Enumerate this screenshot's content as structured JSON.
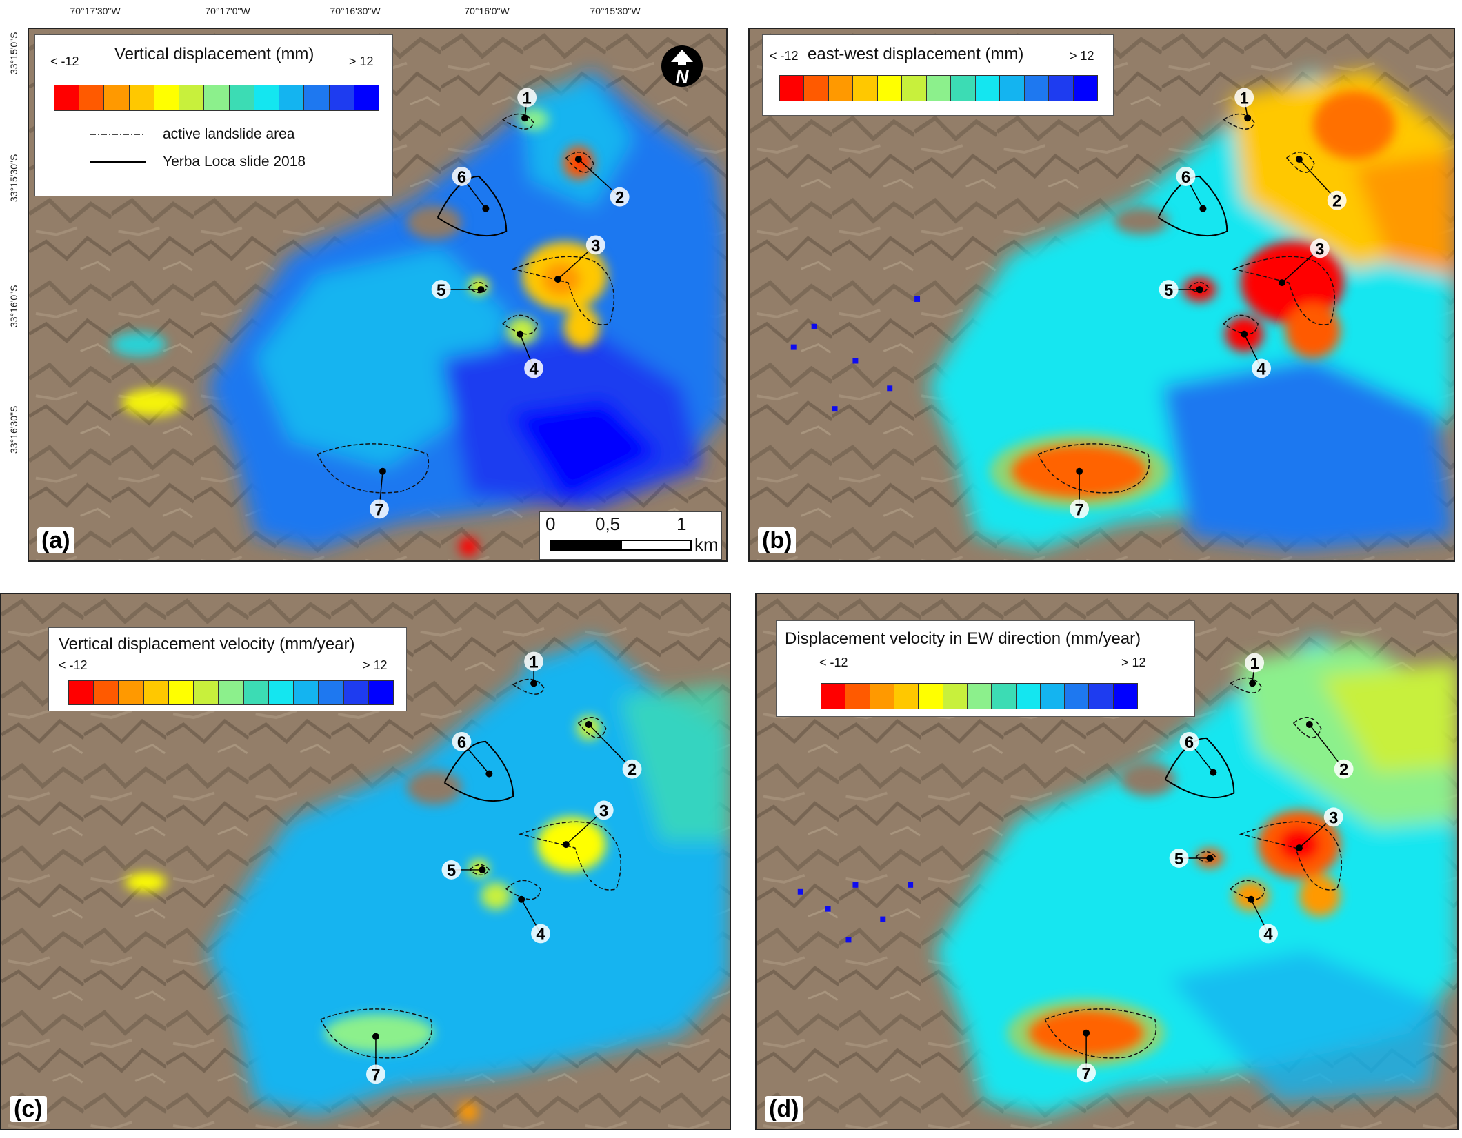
{
  "coordinates": {
    "longitudes": [
      "70°17'30\"W",
      "70°17'0\"W",
      "70°16'30\"W",
      "70°16'0\"W",
      "70°15'30\"W"
    ],
    "latitudes": [
      "33°15'0\"S",
      "33°15'30\"S",
      "33°16'0\"S",
      "33°16'30\"S"
    ]
  },
  "ramp_colors": [
    "#ff0000",
    "#ff5a00",
    "#ff9900",
    "#ffc800",
    "#ffff00",
    "#c8f03c",
    "#8cf08c",
    "#3cdcb4",
    "#14e6f0",
    "#14b4f0",
    "#1e78f0",
    "#1e3cf0",
    "#0000ff"
  ],
  "panels": [
    {
      "label": "(a)",
      "legend_title": "Vertical displacement (mm)",
      "min_label": "< -12",
      "max_label": "> 12",
      "legend_lines": [
        "active landslide area",
        "Yerba Loca slide 2018"
      ]
    },
    {
      "label": "(b)",
      "legend_title": "east-west displacement (mm)",
      "min_label": "< -12",
      "max_label": "> 12"
    },
    {
      "label": "(c)",
      "legend_title": "Vertical displacement velocity (mm/year)",
      "min_label": "< -12",
      "max_label": "> 12"
    },
    {
      "label": "(d)",
      "legend_title": "Displacement velocity in EW direction (mm/year)",
      "min_label": "< -12",
      "max_label": "> 12"
    }
  ],
  "landslides": [
    "1",
    "2",
    "3",
    "4",
    "5",
    "6",
    "7"
  ],
  "north_arrow": {
    "icon": "north-arrow-icon",
    "letter": "N"
  },
  "scalebar": {
    "ticks": [
      "0",
      "0,5",
      "1"
    ],
    "unit": "km"
  }
}
